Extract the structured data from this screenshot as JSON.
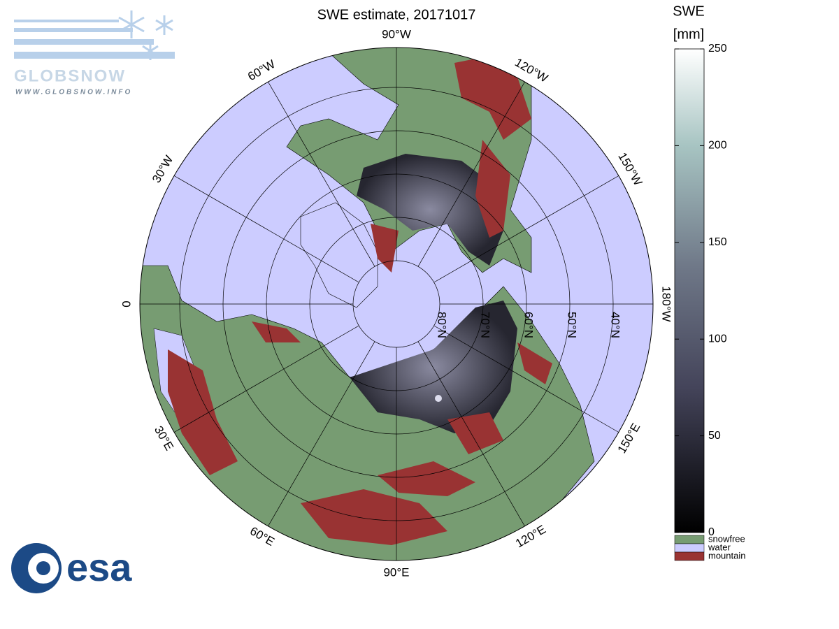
{
  "header": {
    "title": "SWE estimate, 20171017"
  },
  "map": {
    "meridians": [
      {
        "value": -90,
        "label": "90°W"
      },
      {
        "value": -120,
        "label": "120°W"
      },
      {
        "value": -150,
        "label": "150°W"
      },
      {
        "value": 180,
        "label": "180°W"
      },
      {
        "value": 150,
        "label": "150°E"
      },
      {
        "value": 120,
        "label": "120°E"
      },
      {
        "value": 90,
        "label": "90°E"
      },
      {
        "value": 60,
        "label": "60°E"
      },
      {
        "value": 30,
        "label": "30°E"
      },
      {
        "value": 0,
        "label": "0"
      },
      {
        "value": -30,
        "label": "30°W"
      },
      {
        "value": -60,
        "label": "60°W"
      }
    ],
    "parallels": [
      {
        "value": 80,
        "label": "80°N"
      },
      {
        "value": 70,
        "label": "70°N"
      },
      {
        "value": 60,
        "label": "60°N"
      },
      {
        "value": 50,
        "label": "50°N"
      },
      {
        "value": 40,
        "label": "40°N"
      }
    ]
  },
  "colorbar": {
    "title": "SWE",
    "unit": "[mm]",
    "range": [
      0,
      250
    ],
    "ticks": [
      0,
      50,
      100,
      150,
      200,
      250
    ]
  },
  "legend": [
    {
      "label": "snowfree",
      "color": "#779c72"
    },
    {
      "label": "water",
      "color": "#ccccff"
    },
    {
      "label": "mountain",
      "color": "#993333"
    }
  ],
  "logos": {
    "globsnow": "GLOBSNOW",
    "url": "WWW.GLOBSNOW.INFO",
    "esa": "esa"
  }
}
